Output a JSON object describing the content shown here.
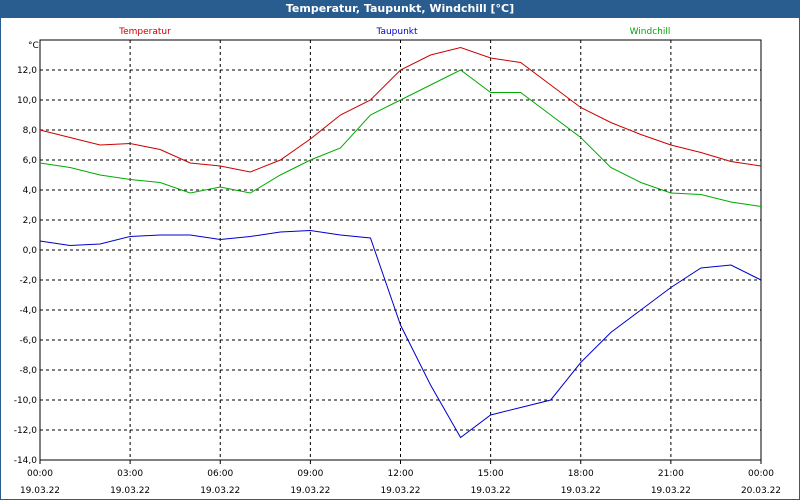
{
  "window": {
    "title": "Temperatur, Taupunkt, Windchill [°C]"
  },
  "chart_data": {
    "type": "line",
    "title": "Temperatur, Taupunkt, Windchill [°C]",
    "ylabel": "°C",
    "ylim": [
      -14,
      14
    ],
    "grid": true,
    "legend_position": "top",
    "yticks": [
      "12,0",
      "10,0",
      "8,0",
      "6,0",
      "4,0",
      "2,0",
      "0,0",
      "-2,0",
      "-4,0",
      "-6,0",
      "-8,0",
      "-10,0",
      "-12,0",
      "-14,0"
    ],
    "xticks": [
      {
        "time": "00:00",
        "date": "19.03.22"
      },
      {
        "time": "03:00",
        "date": "19.03.22"
      },
      {
        "time": "06:00",
        "date": "19.03.22"
      },
      {
        "time": "09:00",
        "date": "19.03.22"
      },
      {
        "time": "12:00",
        "date": "19.03.22"
      },
      {
        "time": "15:00",
        "date": "19.03.22"
      },
      {
        "time": "18:00",
        "date": "19.03.22"
      },
      {
        "time": "21:00",
        "date": "19.03.22"
      },
      {
        "time": "00:00",
        "date": "20.03.22"
      }
    ],
    "x_hours": [
      0,
      1,
      2,
      3,
      4,
      5,
      6,
      7,
      8,
      9,
      10,
      11,
      12,
      13,
      14,
      15,
      16,
      17,
      18,
      19,
      20,
      21,
      22,
      23,
      24
    ],
    "series": [
      {
        "name": "Temperatur",
        "color": "#cc0000",
        "values": [
          8.0,
          7.5,
          7.0,
          7.1,
          6.7,
          5.8,
          5.6,
          5.2,
          6.0,
          7.4,
          9.0,
          10.0,
          12.0,
          13.0,
          13.5,
          12.8,
          12.5,
          11.0,
          9.5,
          8.5,
          7.7,
          7.0,
          6.5,
          5.9,
          5.6
        ]
      },
      {
        "name": "Taupunkt",
        "color": "#0000cc",
        "values": [
          0.6,
          0.3,
          0.4,
          0.9,
          1.0,
          1.0,
          0.7,
          0.9,
          1.2,
          1.3,
          1.0,
          0.8,
          -5.0,
          -9.0,
          -12.5,
          -11.0,
          -10.5,
          -10.0,
          -7.5,
          -5.5,
          -4.0,
          -2.5,
          -1.2,
          -1.0,
          -2.0
        ]
      },
      {
        "name": "Windchill",
        "color": "#00aa00",
        "values": [
          5.8,
          5.5,
          5.0,
          4.7,
          4.5,
          3.8,
          4.2,
          3.8,
          5.0,
          6.0,
          6.8,
          9.0,
          10.0,
          11.0,
          12.0,
          10.5,
          10.5,
          9.0,
          7.5,
          5.5,
          4.5,
          3.8,
          3.7,
          3.2,
          2.9
        ]
      }
    ]
  }
}
